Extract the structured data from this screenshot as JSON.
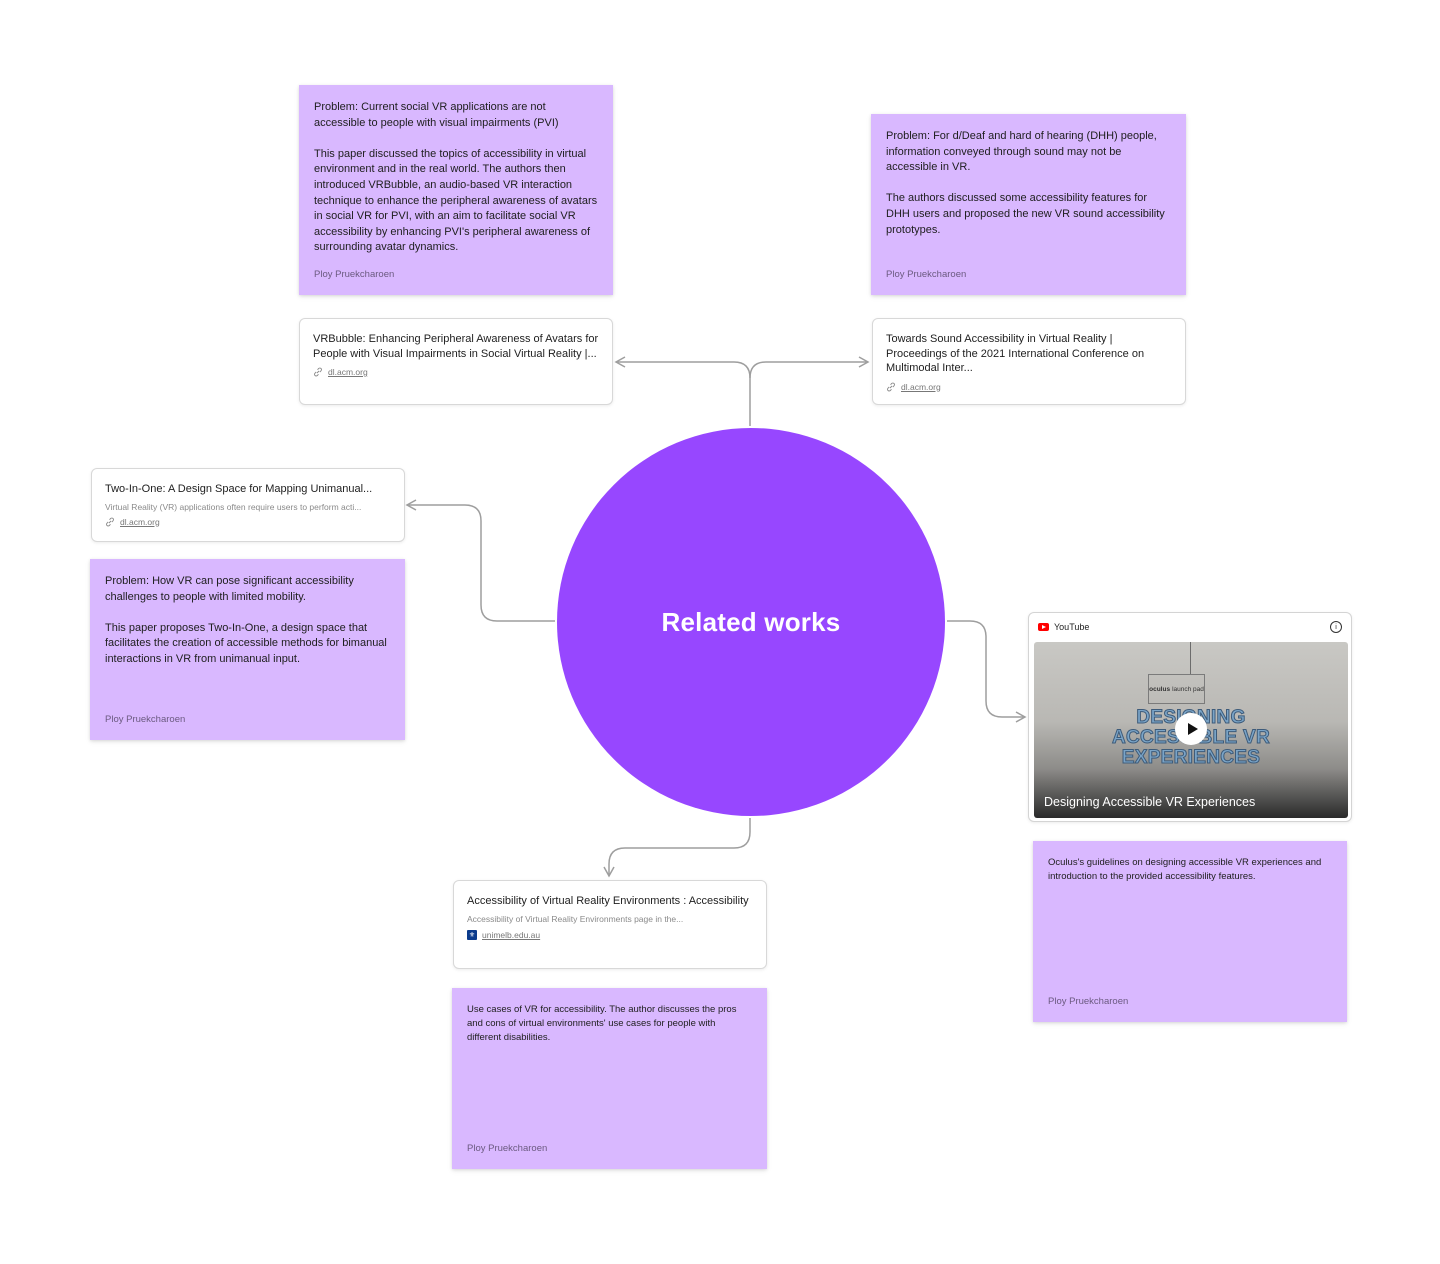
{
  "hub": {
    "label": "Related works"
  },
  "notes": {
    "vrbubble": {
      "body": "Problem: Current social VR applications are not accessible to people with visual impairments (PVI)\n\nThis paper discussed the topics of accessibility in virtual environment and in the real world. The authors then introduced VRBubble, an audio-based VR interaction technique to enhance the peripheral awareness of avatars in social VR for PVI, with an aim to facilitate social VR accessibility by enhancing PVI's peripheral awareness of surrounding avatar dynamics.",
      "author": "Ploy Pruekcharoen"
    },
    "sound": {
      "body": "Problem: For d/Deaf and hard of hearing (DHH) people, information conveyed through sound may not be accessible in VR.\n\nThe authors discussed some accessibility features for DHH users and proposed the new VR sound accessibility prototypes.",
      "author": "Ploy Pruekcharoen"
    },
    "twoinone": {
      "body": "Problem: How VR can pose significant accessibility challenges to people with limited mobility.\n\nThis paper proposes Two-In-One, a design space that facilitates the creation of accessible methods for bimanual interactions in VR from unimanual input.",
      "author": "Ploy Pruekcharoen"
    },
    "oculus": {
      "body": "Oculus's guidelines on designing accessible VR experiences and introduction to the provided accessibility features.",
      "author": "Ploy Pruekcharoen"
    },
    "unimelb": {
      "body": "Use cases of VR for accessibility. The author discusses the pros and cons of virtual environments' use cases for people with different disabilities.",
      "author": "Ploy Pruekcharoen"
    }
  },
  "links": {
    "vrbubble": {
      "title": "VRBubble: Enhancing Peripheral Awareness of Avatars for People with Visual Impairments in Social Virtual Reality |...",
      "domain": "dl.acm.org"
    },
    "sound": {
      "title": "Towards Sound Accessibility in Virtual Reality | Proceedings of the 2021 International Conference on Multimodal Inter...",
      "domain": "dl.acm.org"
    },
    "twoinone": {
      "title": "Two-In-One: A Design Space for Mapping Unimanual...",
      "desc": "Virtual Reality (VR) applications often require users to perform acti...",
      "domain": "dl.acm.org"
    },
    "unimelb": {
      "title": "Accessibility of Virtual Reality Environments : Accessibility",
      "desc": "Accessibility of Virtual Reality Environments page in the...",
      "domain": "unimelb.edu.au"
    }
  },
  "video": {
    "provider": "YouTube",
    "title": "Designing Accessible VR Experiences",
    "thumb_brand": "oculus",
    "thumb_sub": "launch pad",
    "thumb_text": "DESIGNING\nACCESSIBLE VR\nEXPERIENCES"
  },
  "colors": {
    "hub": "#9747ff",
    "sticky": "#d9b8ff",
    "connector": "#9e9e9e"
  }
}
